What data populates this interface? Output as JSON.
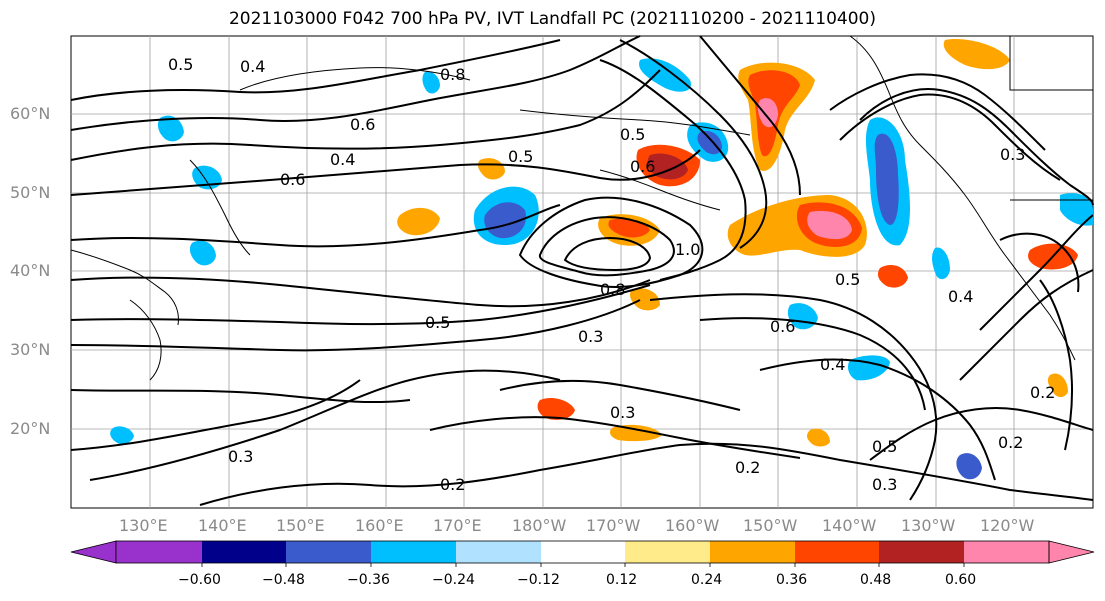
{
  "title": "2021103000 F042 700 hPa PV, IVT Landfall PC (2021110200 - 2021110400)",
  "lat_labels": [
    "60°N",
    "50°N",
    "40°N",
    "30°N",
    "20°N"
  ],
  "lon_labels": [
    "130°E",
    "140°E",
    "150°E",
    "160°E",
    "170°E",
    "180°W",
    "170°W",
    "160°W",
    "150°W",
    "140°W",
    "130°W",
    "120°W"
  ],
  "contour_labels": [
    "0.4",
    "0.5",
    "0.6",
    "0.8",
    "0.4",
    "0.5",
    "0.6",
    "0.5",
    "0.6",
    "0.8",
    "1.0",
    "0.5",
    "0.3",
    "0.6",
    "0.4",
    "0.5",
    "0.3",
    "0.2",
    "0.3",
    "0.2",
    "0.5",
    "0.3",
    "0.2",
    "0.4",
    "0.3",
    "0.2"
  ],
  "colorbar": {
    "ticks": [
      "−0.60",
      "−0.48",
      "−0.36",
      "−0.24",
      "−0.12",
      "0.12",
      "0.24",
      "0.36",
      "0.48",
      "0.60"
    ],
    "colors": [
      "#9932cc",
      "#00008b",
      "#3a5bcc",
      "#00bfff",
      "#b0e2ff",
      "#ffffff",
      "#ffeb8a",
      "#ffa500",
      "#ff4500",
      "#b22222",
      "#ff85ad"
    ]
  },
  "anomaly_colors": {
    "negative_strong": "#3a5bcc",
    "negative": "#00bfff",
    "negative_weak": "#b0e2ff",
    "positive_weak": "#ffa500",
    "positive": "#ff4500",
    "positive_strong": "#b22222",
    "positive_max": "#ff85ad"
  }
}
